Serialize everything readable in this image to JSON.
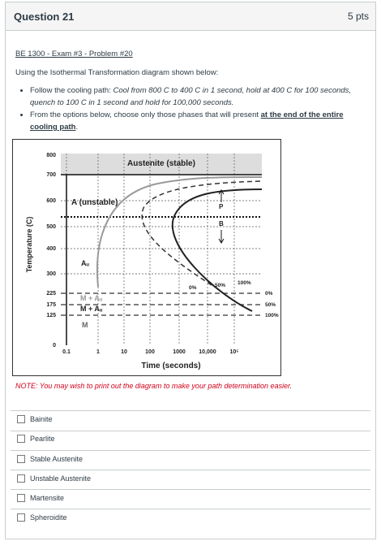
{
  "header": {
    "title": "Question 21",
    "points": "5 pts"
  },
  "body": {
    "heading": "BE 1300 - Exam #3 - Problem #20",
    "intro": "Using the Isothermal Transformation diagram shown below:",
    "bullets": [
      {
        "text": "Follow the cooling path: ",
        "emphasis": "Cool from 800 C to 400 C in 1 second, hold at 400 C for 100 seconds, quench to 100 C in 1 second and hold for 100,000 seconds."
      },
      {
        "text": "From the options below, choose only those phases that will present ",
        "emphasis": "at the end of the entire cooling path",
        "end": "."
      }
    ],
    "note": "NOTE:  You may wish to print out the diagram to make your path determination easier."
  },
  "diagram": {
    "y_label": "Temperature (C)",
    "x_label": "Time (seconds)",
    "y_tick_labels": [
      "800",
      "700",
      "600",
      "500",
      "400",
      "300",
      "225",
      "175",
      "125",
      "0"
    ],
    "x_tick_labels": [
      "0.1",
      "1",
      "10",
      "100",
      "1000",
      "10,000",
      "10⁵"
    ],
    "region_labels": [
      "Austenite (stable)",
      "A (unstable)",
      "Aᵤ",
      "M + Aᵤ",
      "M + Aᵤ",
      "M",
      "P",
      "B"
    ],
    "curve_labels": [
      "0%",
      "50%",
      "100%"
    ],
    "martensite_labels": [
      "0%",
      "50%",
      "100%"
    ]
  },
  "options": [
    "Bainite",
    "Pearlite",
    "Stable Austenite",
    "Unstable Austenite",
    "Martensite",
    "Spheroidite"
  ]
}
